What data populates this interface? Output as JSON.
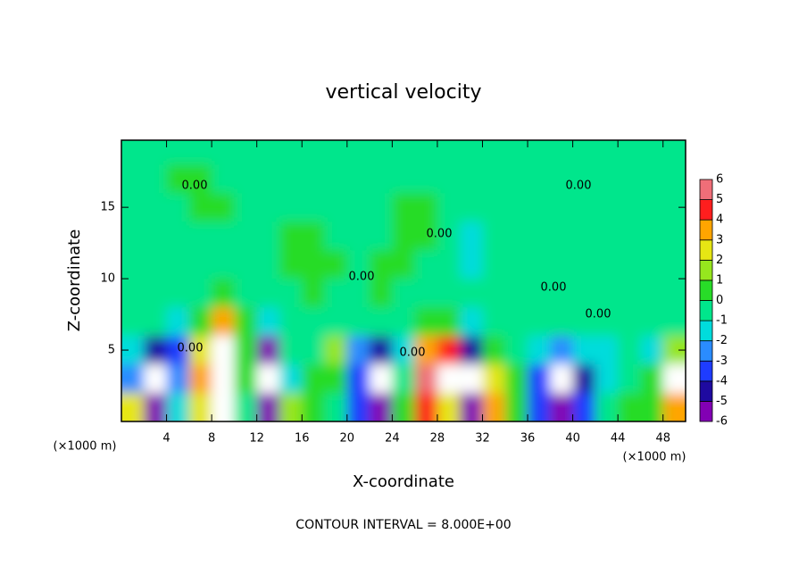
{
  "chart_data": {
    "type": "contour",
    "title": "vertical velocity",
    "x_label": "X-coordinate",
    "y_label": "Z-coordinate",
    "x_unit": "(×1000 m)",
    "y_unit": "(×1000 m)",
    "footer": "CONTOUR INTERVAL = 8.000E+00",
    "contour_labels": [
      "0.00",
      "0.00",
      "0.00",
      "0.00",
      "0.00",
      "0.00",
      "0.00",
      "0.00"
    ],
    "xlim": [
      0,
      50
    ],
    "ylim": [
      0,
      19.7
    ],
    "xticks": [
      4,
      8,
      12,
      16,
      20,
      24,
      28,
      32,
      36,
      40,
      44,
      48
    ],
    "yticks": [
      5,
      10,
      15
    ],
    "x": [
      1,
      3,
      5,
      7,
      9,
      11,
      13,
      15,
      17,
      19,
      21,
      23,
      25,
      27,
      29,
      31,
      33,
      35,
      37,
      39,
      41,
      43,
      45,
      47,
      49
    ],
    "y": [
      1,
      3,
      5,
      7,
      9,
      11,
      13,
      15,
      17,
      19
    ],
    "z": [
      [
        3,
        -6,
        -1,
        3,
        7,
        0,
        -6,
        2,
        1,
        0,
        -3,
        -5,
        1,
        5,
        3,
        -6,
        4,
        1,
        -3,
        -5,
        -3,
        0,
        1,
        1,
        4
      ],
      [
        -2,
        -7,
        -2,
        4,
        8,
        1,
        -7,
        -1,
        1,
        1,
        -3,
        -7,
        0,
        6,
        7,
        -7,
        3,
        1,
        -3,
        -7,
        -4,
        -1,
        0,
        1,
        7
      ],
      [
        -1,
        -4,
        -3,
        3,
        7,
        1,
        -5,
        0,
        0,
        2,
        -2,
        -4,
        -1,
        4,
        5,
        -4,
        1,
        0,
        -1,
        -2,
        -1,
        -1,
        0,
        -1,
        2
      ],
      [
        0,
        0,
        -1,
        1,
        4,
        1,
        -1,
        0,
        0,
        0,
        0,
        0,
        0,
        1,
        1,
        -1,
        0,
        0,
        0,
        0,
        0,
        0,
        0,
        0,
        0
      ],
      [
        0,
        0,
        0,
        0,
        1,
        0,
        0,
        0,
        1,
        0,
        0,
        1,
        0,
        0,
        0,
        0,
        0,
        0,
        0,
        0,
        0,
        0,
        0,
        0,
        0
      ],
      [
        0,
        0,
        0,
        0,
        0,
        0,
        0,
        1,
        1,
        1,
        0,
        1,
        1,
        0,
        0,
        -1,
        0,
        0,
        0,
        0,
        0,
        0,
        0,
        0,
        0
      ],
      [
        0,
        0,
        0,
        0,
        0,
        0,
        0,
        1,
        1,
        0,
        0,
        0,
        1,
        1,
        0,
        -1,
        0,
        0,
        0,
        0,
        0,
        0,
        0,
        0,
        0
      ],
      [
        0,
        0,
        0,
        1,
        1,
        0,
        0,
        0,
        0,
        0,
        0,
        0,
        1,
        1,
        0,
        0,
        0,
        0,
        0,
        0,
        0,
        0,
        0,
        0,
        0
      ],
      [
        0,
        0,
        1,
        1,
        0,
        0,
        0,
        0,
        0,
        0,
        0,
        0,
        0,
        0,
        0,
        0,
        0,
        0,
        0,
        0,
        0,
        0,
        0,
        0,
        0
      ],
      [
        0,
        0,
        0,
        0,
        0,
        0,
        0,
        0,
        0,
        0,
        0,
        0,
        0,
        0,
        0,
        0,
        0,
        0,
        0,
        0,
        0,
        0,
        0,
        0,
        0
      ]
    ],
    "levels": [
      -6,
      -5,
      -4,
      -3,
      -2,
      -1,
      0,
      1,
      2,
      3,
      4,
      5,
      6
    ],
    "colors": [
      "#8200b4",
      "#1e0aa0",
      "#1e3cff",
      "#2a8cff",
      "#00dcdc",
      "#00e68c",
      "#28dc28",
      "#96e61e",
      "#e6e614",
      "#ffa500",
      "#ff1e1e",
      "#f06e78"
    ],
    "overflow_color": "#ffffff"
  }
}
